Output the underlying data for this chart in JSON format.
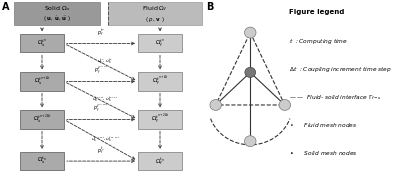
{
  "bg_color": "#ffffff",
  "header_solid_color": "#999999",
  "header_fluid_color": "#bbbbbb",
  "box_solid_color": "#aaaaaa",
  "box_fluid_color": "#cccccc",
  "panel_a_label": "A",
  "panel_b_label": "B",
  "solid_labels": [
    "$\\Omega_s^{t^n}$",
    "$\\Omega_s^{t^{n+\\Delta t}}$",
    "$\\Omega_s^{t^{n+2\\Delta t}}$",
    "$\\Omega_s^{t_n}$"
  ],
  "fluid_labels": [
    "$\\Omega_f^{t^n}$",
    "$\\Omega_f^{t^{n+\\Delta t}}$",
    "$\\Omega_f^{t^{n+2\\Delta t}}$",
    "$\\Omega_f^{t_n}$"
  ],
  "horiz_labels": [
    "$p_f^{t^n}$",
    "$p_f^{t^{n+\\Delta t}}$",
    "$p_f^{t^{n+2\\Delta t}}$",
    "$p_f^{t_n}$"
  ],
  "diag_labels": [
    "$u_s^{t^n}$, $\\dot{u}_s^{t^n}$",
    "$u_s^{t^{n+\\Delta t}}$, $\\dot{u}_s^{t^{n+\\Delta t}}$",
    "$u_s^{t^{n+2\\Delta t}}$, $\\dot{u}_s^{t^{n+2\\Delta t}}$"
  ],
  "legend_title": "Figure legend",
  "legend_lines": [
    "t  : Computing time",
    "\\u0394t  : Coupling increment time step",
    "\\u2014 \\u2014  Fluid- solid interface \\u0393\\u2093\\u208b\\u209b",
    "\\u25cb      Fluid mesh nodes",
    "\\u25cf      Solid mesh nodes"
  ]
}
